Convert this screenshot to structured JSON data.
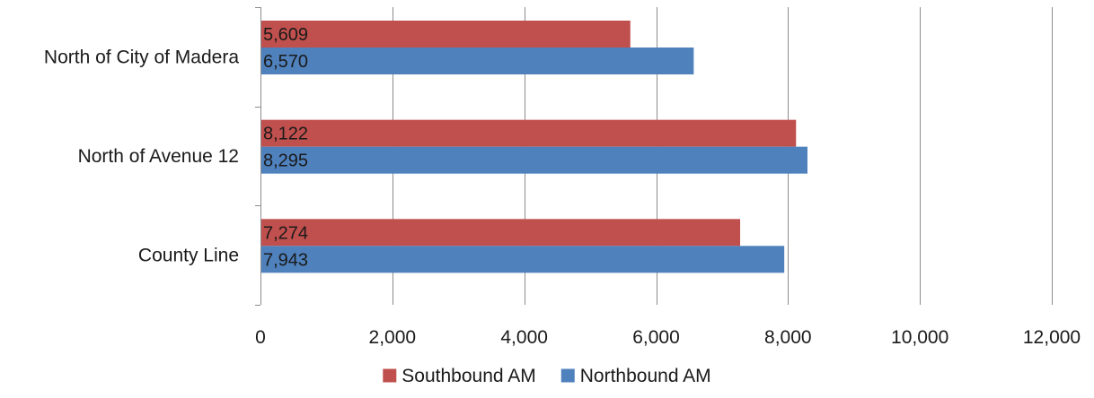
{
  "chart_data": {
    "type": "bar",
    "orientation": "horizontal",
    "categories": [
      "North of City of Madera",
      "North of Avenue 12",
      "County Line"
    ],
    "series": [
      {
        "name": "Southbound AM",
        "values": [
          5609,
          8122,
          7274
        ],
        "labels": [
          "5,609",
          "8,122",
          "7,274"
        ],
        "color": "#c0504d"
      },
      {
        "name": "Northbound AM",
        "values": [
          6570,
          8295,
          7943
        ],
        "labels": [
          "6,570",
          "8,295",
          "7,943"
        ],
        "color": "#4f81bd"
      }
    ],
    "xlim": [
      0,
      12000
    ],
    "xticks": [
      0,
      2000,
      4000,
      6000,
      8000,
      10000,
      12000
    ],
    "xtick_labels": [
      "0",
      "2,000",
      "4,000",
      "6,000",
      "8,000",
      "10,000",
      "12,000"
    ],
    "grid": true,
    "legend_position": "bottom"
  }
}
